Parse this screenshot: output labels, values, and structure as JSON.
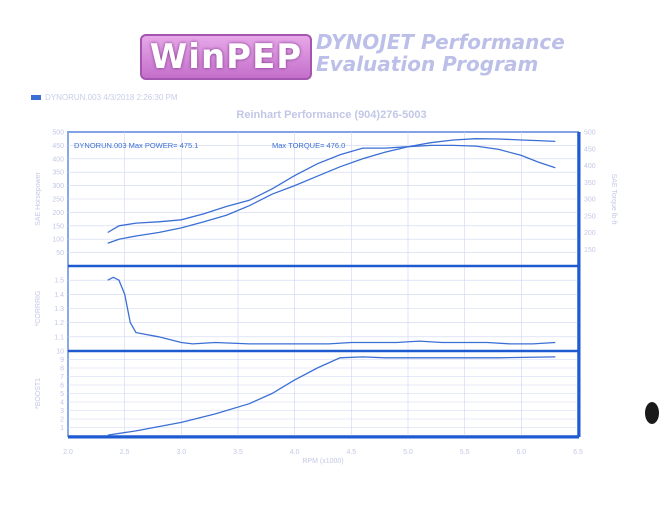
{
  "header": {
    "logo_text": "WinPEP",
    "app_title_line1": "DYNOJET Performance",
    "app_title_line2": "Evaluation Program",
    "legend_label": "DYNORUN.003 4/3/2018 2:26:30 PM",
    "shop_name": "Reinhart Performance (904)276-5003"
  },
  "colors": {
    "curve": "#3b6fd4",
    "frame": "#1e5ad0",
    "grid": "#cfd6f2"
  },
  "chart_data": [
    {
      "type": "line",
      "title": "DYNORUN.003  Max POWER= 475.1",
      "annotation": "Max TORQUE= 476.0",
      "xlabel": "RPM (x1000)",
      "ylabel": "SAE Horsepower",
      "y2label": "SAE Torque lb-ft",
      "xlim": [
        2.0,
        6.5
      ],
      "ylim": [
        0,
        500
      ],
      "y2lim": [
        100,
        500
      ],
      "xticks": [
        "2.0",
        "2.5",
        "3.0",
        "3.5",
        "4.0",
        "4.5",
        "5.0",
        "5.5",
        "6.0",
        "6.5"
      ],
      "yticks": [
        "500",
        "450",
        "400",
        "350",
        "300",
        "250",
        "200",
        "150",
        "100",
        "50"
      ],
      "y2ticks": [
        "500",
        "450",
        "400",
        "350",
        "300",
        "250",
        "200",
        "150"
      ],
      "series": [
        {
          "name": "SAE Horsepower",
          "axis": "left",
          "x": [
            2.35,
            2.45,
            2.6,
            2.8,
            3.0,
            3.2,
            3.4,
            3.6,
            3.8,
            4.0,
            4.2,
            4.4,
            4.6,
            4.8,
            5.0,
            5.2,
            5.4,
            5.6,
            5.8,
            6.0,
            6.15,
            6.3
          ],
          "y": [
            85,
            100,
            112,
            125,
            142,
            165,
            190,
            225,
            268,
            300,
            335,
            370,
            400,
            425,
            445,
            460,
            470,
            475,
            474,
            470,
            468,
            465
          ]
        },
        {
          "name": "SAE Torque",
          "axis": "right",
          "x": [
            2.35,
            2.45,
            2.6,
            2.8,
            3.0,
            3.2,
            3.4,
            3.6,
            3.8,
            4.0,
            4.2,
            4.4,
            4.6,
            4.8,
            5.0,
            5.2,
            5.4,
            5.6,
            5.8,
            6.0,
            6.15,
            6.3
          ],
          "y": [
            200,
            220,
            228,
            232,
            238,
            256,
            278,
            296,
            330,
            370,
            405,
            432,
            452,
            452,
            456,
            460,
            460,
            458,
            448,
            430,
            410,
            393
          ]
        }
      ]
    },
    {
      "type": "line",
      "ylabel": "*CORRRIG",
      "xlim": [
        2.0,
        6.5
      ],
      "ylim": [
        1.0,
        1.6
      ],
      "yticks": [
        "1.5",
        "1.4",
        "1.3",
        "1.2",
        "1.1"
      ],
      "series": [
        {
          "name": "CORRRIG",
          "x": [
            2.35,
            2.4,
            2.45,
            2.5,
            2.55,
            2.6,
            2.8,
            3.0,
            3.1,
            3.3,
            3.6,
            3.8,
            4.0,
            4.3,
            4.5,
            4.7,
            4.9,
            5.1,
            5.3,
            5.5,
            5.7,
            5.9,
            6.1,
            6.3
          ],
          "y": [
            1.5,
            1.52,
            1.5,
            1.4,
            1.2,
            1.13,
            1.1,
            1.06,
            1.05,
            1.06,
            1.05,
            1.05,
            1.05,
            1.05,
            1.06,
            1.06,
            1.06,
            1.07,
            1.06,
            1.06,
            1.06,
            1.05,
            1.05,
            1.06
          ]
        }
      ]
    },
    {
      "type": "line",
      "ylabel": "*BOOST1",
      "xlim": [
        2.0,
        6.5
      ],
      "ylim": [
        0,
        10
      ],
      "yticks": [
        "10",
        "9",
        "8",
        "7",
        "6",
        "5",
        "4",
        "3",
        "2",
        "1"
      ],
      "series": [
        {
          "name": "BOOST1",
          "x": [
            2.35,
            2.6,
            3.0,
            3.3,
            3.6,
            3.8,
            4.0,
            4.2,
            4.4,
            4.6,
            4.8,
            5.0,
            5.4,
            5.8,
            6.3
          ],
          "y": [
            0.1,
            0.6,
            1.6,
            2.6,
            3.8,
            5.0,
            6.6,
            8.0,
            9.2,
            9.3,
            9.2,
            9.2,
            9.2,
            9.2,
            9.3
          ]
        }
      ]
    }
  ]
}
